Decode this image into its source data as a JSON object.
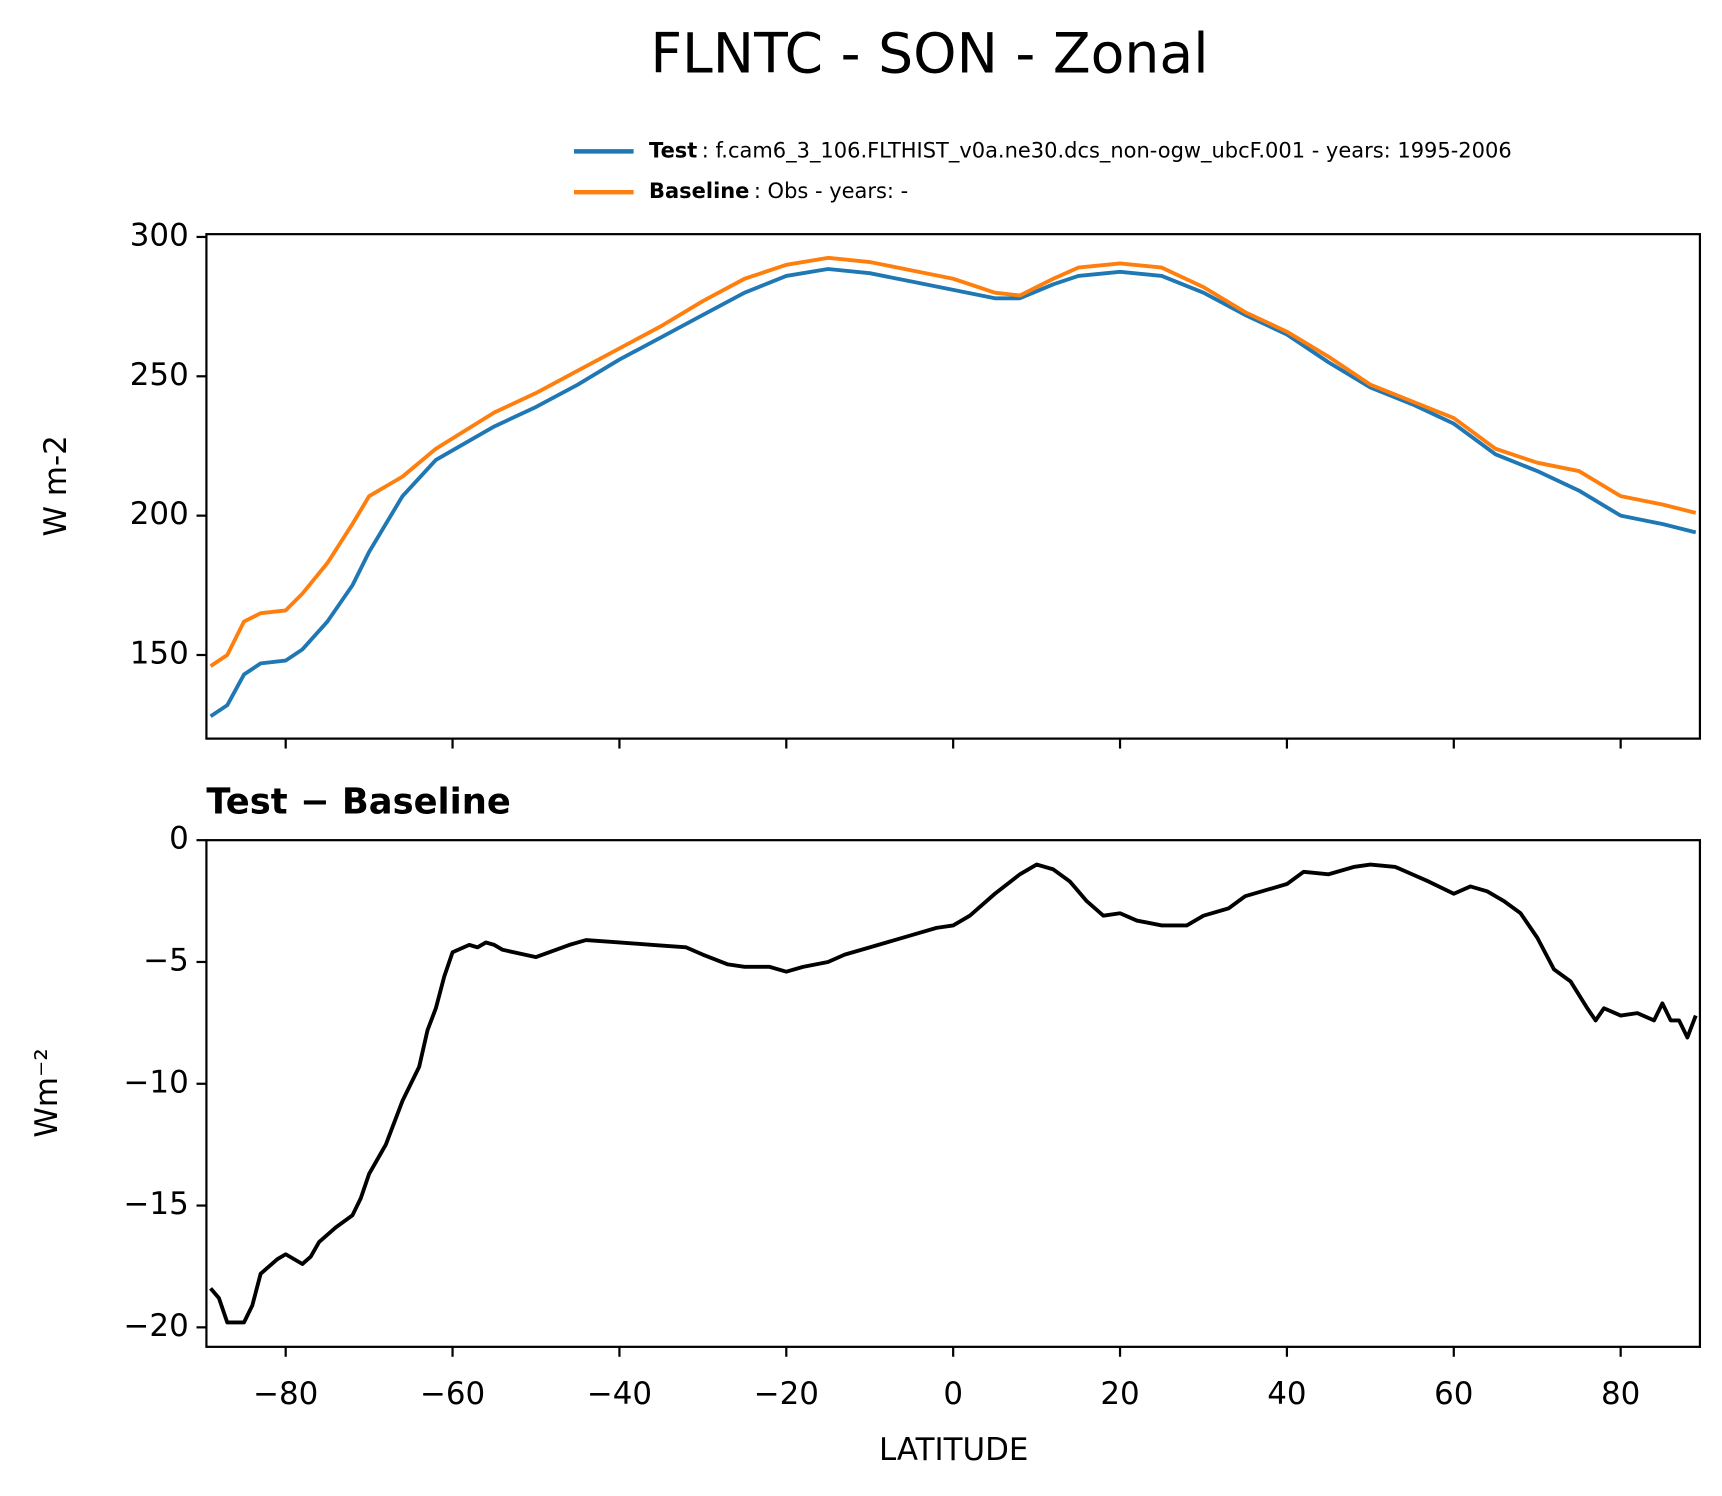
{
  "chart_data": [
    {
      "type": "line",
      "title": "FLNTC - SON - Zonal",
      "y_label": "W m-2",
      "x": [
        -89,
        -87,
        -85,
        -83,
        -80,
        -78,
        -75,
        -72,
        -70,
        -66,
        -62,
        -55,
        -50,
        -45,
        -40,
        -35,
        -30,
        -25,
        -20,
        -15,
        -10,
        -5,
        0,
        5,
        8,
        12,
        15,
        20,
        25,
        30,
        35,
        40,
        45,
        50,
        55,
        60,
        65,
        70,
        75,
        80,
        85,
        89
      ],
      "series": [
        {
          "name": "Test",
          "description": ": f.cam6_3_106.FLTHIST_v0a.ne30.dcs_non-ogw_ubcF.001 - years: 1995-2006",
          "color": "#1f77b4",
          "values": [
            128,
            132,
            143,
            147,
            148,
            152,
            162,
            175,
            187,
            207,
            220,
            232,
            239,
            247,
            256,
            264,
            272,
            280,
            286,
            288.5,
            287,
            284,
            281,
            278,
            278,
            283,
            286,
            287.5,
            286,
            280,
            272,
            265,
            255,
            246,
            240,
            233,
            222,
            216,
            209,
            200,
            197,
            194
          ]
        },
        {
          "name": "Baseline",
          "description": ": Obs - years: -",
          "color": "#ff7f0e",
          "values": [
            146,
            150,
            162,
            165,
            166,
            172,
            183,
            197,
            207,
            214,
            224,
            237,
            244,
            252,
            260,
            268,
            277,
            285,
            290,
            292.5,
            291,
            288,
            285,
            280,
            279,
            285,
            289,
            290.5,
            289,
            282,
            273,
            266,
            257,
            247,
            241,
            235,
            224,
            219,
            216,
            207,
            204,
            201
          ]
        }
      ],
      "xlim": [
        -89.5,
        89.5
      ],
      "xticks": [
        -80,
        -60,
        -40,
        -20,
        0,
        20,
        40,
        60,
        80
      ],
      "ylim": [
        120,
        301
      ],
      "yticks": [
        150,
        200,
        250,
        300
      ]
    },
    {
      "type": "line",
      "title": "Test − Baseline",
      "y_label": "Wm⁻²",
      "x_label": "LATITUDE",
      "x": [
        -89,
        -88,
        -87,
        -85,
        -84,
        -83,
        -81,
        -80,
        -78,
        -77,
        -76,
        -74,
        -72,
        -71,
        -70,
        -68,
        -66,
        -64,
        -63,
        -62,
        -61,
        -60,
        -58,
        -57,
        -56,
        -55,
        -54,
        -50,
        -46,
        -44,
        -40,
        -36,
        -32,
        -30,
        -27,
        -25,
        -22,
        -20,
        -18,
        -15,
        -13,
        -10,
        -8,
        -5,
        -2,
        0,
        2,
        5,
        8,
        10,
        12,
        14,
        16,
        18,
        20,
        22,
        25,
        28,
        30,
        33,
        35,
        37,
        40,
        42,
        45,
        48,
        50,
        53,
        55,
        57,
        60,
        62,
        64,
        66,
        68,
        70,
        72,
        74,
        76,
        77,
        78,
        80,
        82,
        84,
        85,
        86,
        87,
        88,
        89
      ],
      "series": [
        {
          "name": "Test − Baseline",
          "color": "#000000",
          "values": [
            -18.4,
            -18.8,
            -19.8,
            -19.8,
            -19.1,
            -17.8,
            -17.2,
            -17.0,
            -17.4,
            -17.1,
            -16.5,
            -15.9,
            -15.4,
            -14.7,
            -13.7,
            -12.5,
            -10.7,
            -9.3,
            -7.8,
            -6.9,
            -5.6,
            -4.6,
            -4.3,
            -4.4,
            -4.2,
            -4.3,
            -4.5,
            -4.8,
            -4.3,
            -4.1,
            -4.2,
            -4.3,
            -4.4,
            -4.7,
            -5.1,
            -5.2,
            -5.2,
            -5.4,
            -5.2,
            -5.0,
            -4.7,
            -4.4,
            -4.2,
            -3.9,
            -3.6,
            -3.5,
            -3.1,
            -2.2,
            -1.4,
            -1.0,
            -1.2,
            -1.7,
            -2.5,
            -3.1,
            -3.0,
            -3.3,
            -3.5,
            -3.5,
            -3.1,
            -2.8,
            -2.3,
            -2.1,
            -1.8,
            -1.3,
            -1.4,
            -1.1,
            -1.0,
            -1.1,
            -1.4,
            -1.7,
            -2.2,
            -1.9,
            -2.1,
            -2.5,
            -3.0,
            -4.0,
            -5.3,
            -5.8,
            -6.9,
            -7.4,
            -6.9,
            -7.2,
            -7.1,
            -7.4,
            -6.7,
            -7.4,
            -7.4,
            -8.1,
            -7.2
          ]
        }
      ],
      "xlim": [
        -89.5,
        89.5
      ],
      "xticks": [
        {
          "value": -80,
          "label": "−80"
        },
        {
          "value": -60,
          "label": "−60"
        },
        {
          "value": -40,
          "label": "−40"
        },
        {
          "value": -20,
          "label": "−20"
        },
        0,
        20,
        40,
        60,
        80
      ],
      "ylim": [
        -20.8,
        0
      ],
      "yticks": [
        {
          "value": -20,
          "label": "−20"
        },
        {
          "value": -15,
          "label": "−15"
        },
        {
          "value": -10,
          "label": "−10"
        },
        {
          "value": -5,
          "label": "−5"
        },
        0
      ]
    }
  ]
}
